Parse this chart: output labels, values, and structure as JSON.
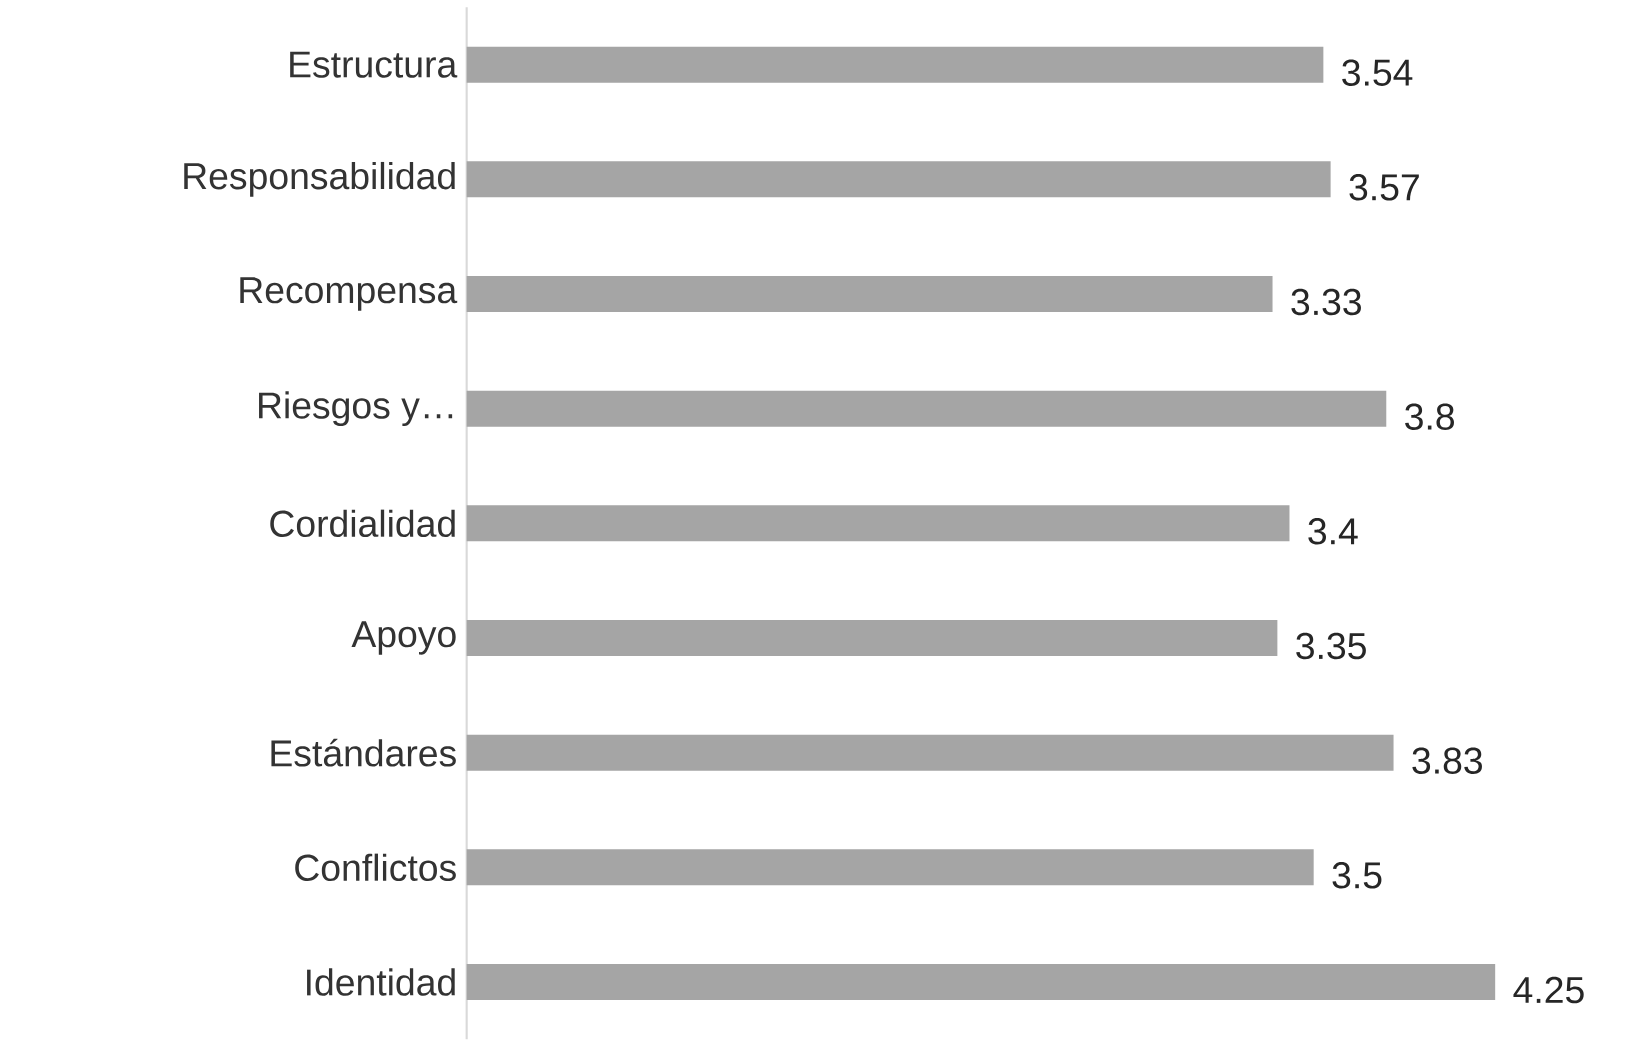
{
  "chart_data": {
    "type": "bar",
    "orientation": "horizontal",
    "categories": [
      "Estructura",
      "Responsabilidad",
      "Recompensa",
      "Riesgos y…",
      "Cordialidad",
      "Apoyo",
      "Estándares",
      "Conflictos",
      "Identidad"
    ],
    "values": [
      3.54,
      3.57,
      3.33,
      3.8,
      3.4,
      3.35,
      3.83,
      3.5,
      4.25
    ],
    "value_labels": [
      "3.54",
      "3.57",
      "3.33",
      "3.8",
      "3.4",
      "3.35",
      "3.83",
      "3.5",
      "4.25"
    ],
    "color": "#a5a5a5",
    "tick_labels": "y"
  }
}
